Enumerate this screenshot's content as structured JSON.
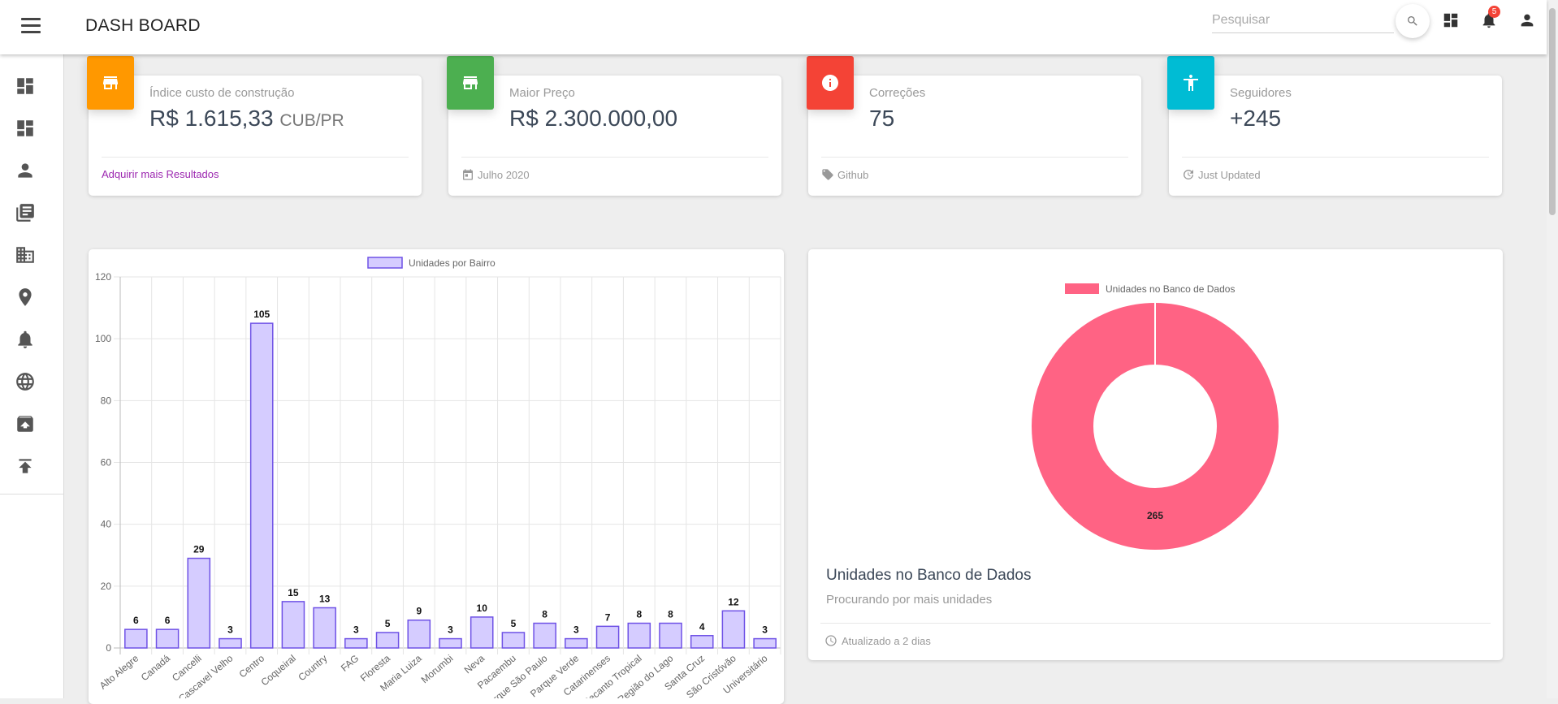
{
  "header": {
    "title": "DASH BOARD",
    "search_placeholder": "Pesquisar",
    "notification_count": "5"
  },
  "sidebar": {
    "items": [
      {
        "icon": "dashboard-icon"
      },
      {
        "icon": "dashboard-icon"
      },
      {
        "icon": "person-icon"
      },
      {
        "icon": "library-books-icon"
      },
      {
        "icon": "business-icon"
      },
      {
        "icon": "location-icon"
      },
      {
        "icon": "bell-icon"
      },
      {
        "icon": "language-icon"
      },
      {
        "icon": "unarchive-icon"
      },
      {
        "icon": "publish-icon"
      }
    ]
  },
  "stats": [
    {
      "label": "Índice custo de construção",
      "value": "R$ 1.615,33",
      "unit": "CUB/PR",
      "footer": "Adquirir mais Resultados",
      "color": "#ff9800",
      "icon": "store-icon"
    },
    {
      "label": "Maior Preço",
      "value": "R$ 2.300.000,00",
      "footer": "Julho 2020",
      "color": "#4caf50",
      "icon": "store-icon",
      "footer_icon": "calendar-icon"
    },
    {
      "label": "Correções",
      "value": "75",
      "footer": "Github",
      "color": "#f44336",
      "icon": "info-icon",
      "footer_icon": "tag-icon"
    },
    {
      "label": "Seguidores",
      "value": "+245",
      "footer": "Just Updated",
      "color": "#00bcd4",
      "icon": "accessibility-icon",
      "footer_icon": "update-icon"
    }
  ],
  "donut_card": {
    "title": "Unidades no Banco de Dados",
    "subtitle": "Procurando por mais unidades",
    "footer": "Atualizado a 2 dias"
  },
  "chart_data": [
    {
      "type": "bar",
      "series": [
        {
          "name": "Unidades por Bairro",
          "values": [
            6,
            6,
            29,
            3,
            105,
            15,
            13,
            3,
            5,
            9,
            3,
            10,
            5,
            8,
            3,
            7,
            8,
            8,
            4,
            12,
            3
          ]
        }
      ],
      "categories": [
        "Alto Alegre",
        "Canadá",
        "Cancelli",
        "Cascavel Velho",
        "Centro",
        "Coqueiral",
        "Country",
        "FAG",
        "Floresta",
        "Maria Luiza",
        "Morumbi",
        "Neva",
        "Pacaembu",
        "Parque São Paulo",
        "Parque Verde",
        "Catarinenses",
        "Recanto Tropical",
        "Região do Lago",
        "Santa Cruz",
        "São Cristóvão",
        "Universitário"
      ],
      "ylim": [
        0,
        120
      ],
      "yticks": [
        0,
        20,
        40,
        60,
        80,
        100,
        120
      ],
      "data_labels": true,
      "legend": "top",
      "grid": true,
      "colors": {
        "fill": "#d5ccff",
        "stroke": "#6f52e6"
      }
    },
    {
      "type": "pie",
      "variant": "doughnut",
      "slices": [
        {
          "label": "Unidades no Banco de Dados",
          "value": 265
        }
      ],
      "legend": "top",
      "colors": {
        "fill": "#ff6384"
      }
    }
  ]
}
